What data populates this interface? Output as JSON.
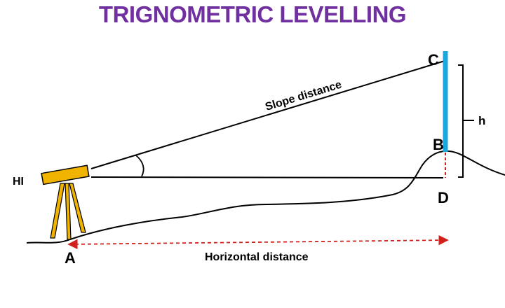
{
  "title": "TRIGNOMETRIC LEVELLING",
  "labels": {
    "hi": "HI",
    "point_a": "A",
    "point_b": "B",
    "point_c": "C",
    "point_d": "D",
    "height": "h",
    "slope_distance": "Slope distance",
    "horizontal_distance": "Horizontal distance"
  },
  "colors": {
    "title": "#7030a0",
    "staff": "#1aa7e0",
    "instrument": "#f0b400",
    "dashed_lines": "#d0211c",
    "lines": "#000000"
  }
}
